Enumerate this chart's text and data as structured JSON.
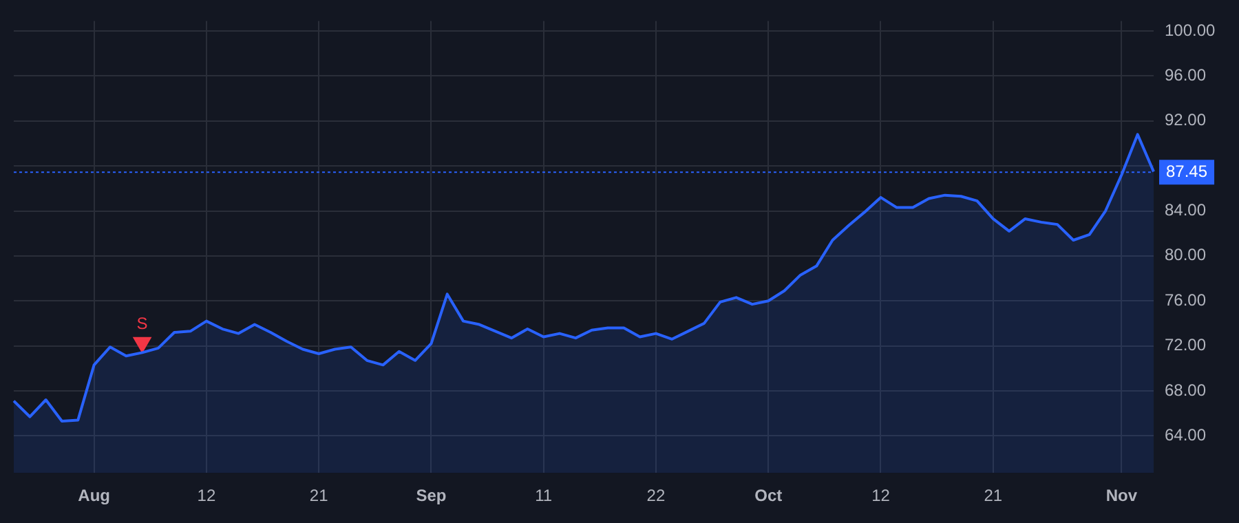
{
  "chart_data": {
    "type": "area",
    "categories": [
      null,
      null,
      null,
      null,
      null,
      "Aug",
      null,
      null,
      null,
      null,
      null,
      null,
      "12",
      null,
      null,
      null,
      null,
      null,
      null,
      "21",
      null,
      null,
      null,
      null,
      null,
      null,
      "Sep",
      null,
      null,
      null,
      null,
      null,
      null,
      "11",
      null,
      null,
      null,
      null,
      null,
      null,
      "22",
      null,
      null,
      null,
      null,
      null,
      null,
      "Oct",
      null,
      null,
      null,
      null,
      null,
      null,
      "12",
      null,
      null,
      null,
      null,
      null,
      null,
      "21",
      null,
      null,
      null,
      null,
      null,
      null,
      null,
      "Nov",
      null,
      null
    ],
    "series": [
      {
        "color": "#2962ff",
        "values": [
          67.1,
          65.7,
          67.2,
          65.3,
          65.4,
          70.3,
          71.9,
          71.1,
          71.4,
          71.8,
          73.2,
          73.3,
          74.2,
          73.5,
          73.1,
          73.9,
          73.2,
          72.4,
          71.7,
          71.3,
          71.7,
          71.9,
          70.7,
          70.3,
          71.5,
          70.7,
          72.2,
          76.6,
          74.2,
          73.9,
          73.3,
          72.7,
          73.5,
          72.8,
          73.1,
          72.7,
          73.4,
          73.6,
          73.6,
          72.8,
          73.1,
          72.6,
          73.3,
          74.0,
          75.9,
          76.3,
          75.7,
          76.0,
          76.9,
          78.3,
          79.1,
          81.4,
          82.7,
          83.9,
          85.2,
          84.3,
          84.3,
          85.1,
          85.4,
          85.3,
          84.9,
          83.3,
          82.2,
          83.3,
          83.0,
          82.8,
          81.4,
          81.9,
          84.0,
          87.2,
          90.8,
          87.5
        ]
      },
      {
        "type": "scatter",
        "name": "S",
        "color": "#f23645",
        "marker": "triangle",
        "values": [
          null,
          null,
          null,
          null,
          null,
          null,
          null,
          null,
          72.3,
          null,
          null,
          null,
          null,
          null,
          null,
          null,
          null,
          null,
          null,
          null,
          null,
          null,
          null,
          null,
          null,
          null,
          null,
          null,
          null,
          null,
          null,
          null,
          null,
          null,
          null,
          null,
          null,
          null,
          null,
          null,
          null,
          null,
          null,
          null,
          null,
          null,
          null,
          null,
          null,
          null,
          null,
          null,
          null,
          null,
          null,
          null,
          null,
          null,
          null,
          null,
          null,
          null,
          null,
          null,
          null,
          null,
          null,
          null,
          null,
          null,
          null,
          null
        ]
      }
    ],
    "ylim": [
      60.7,
      100.9
    ],
    "yticks": [
      {
        "value": 64,
        "label": "64.00"
      },
      {
        "value": 68,
        "label": "68.00"
      },
      {
        "value": 72,
        "label": "72.00"
      },
      {
        "value": 76,
        "label": "76.00"
      },
      {
        "value": 80,
        "label": "80.00"
      },
      {
        "value": 84,
        "label": "84.00"
      },
      {
        "value": 88,
        "label": null
      },
      {
        "value": 92,
        "label": "92.00"
      },
      {
        "value": 96,
        "label": "96.00"
      },
      {
        "value": 100,
        "label": "100.00"
      }
    ],
    "ref_lines": [
      {
        "axis": "y",
        "value": 87.45,
        "label": "87.45",
        "color": "#2962ff",
        "line_style": "dotted"
      }
    ],
    "grid": true,
    "legend": false,
    "marker": "none"
  }
}
